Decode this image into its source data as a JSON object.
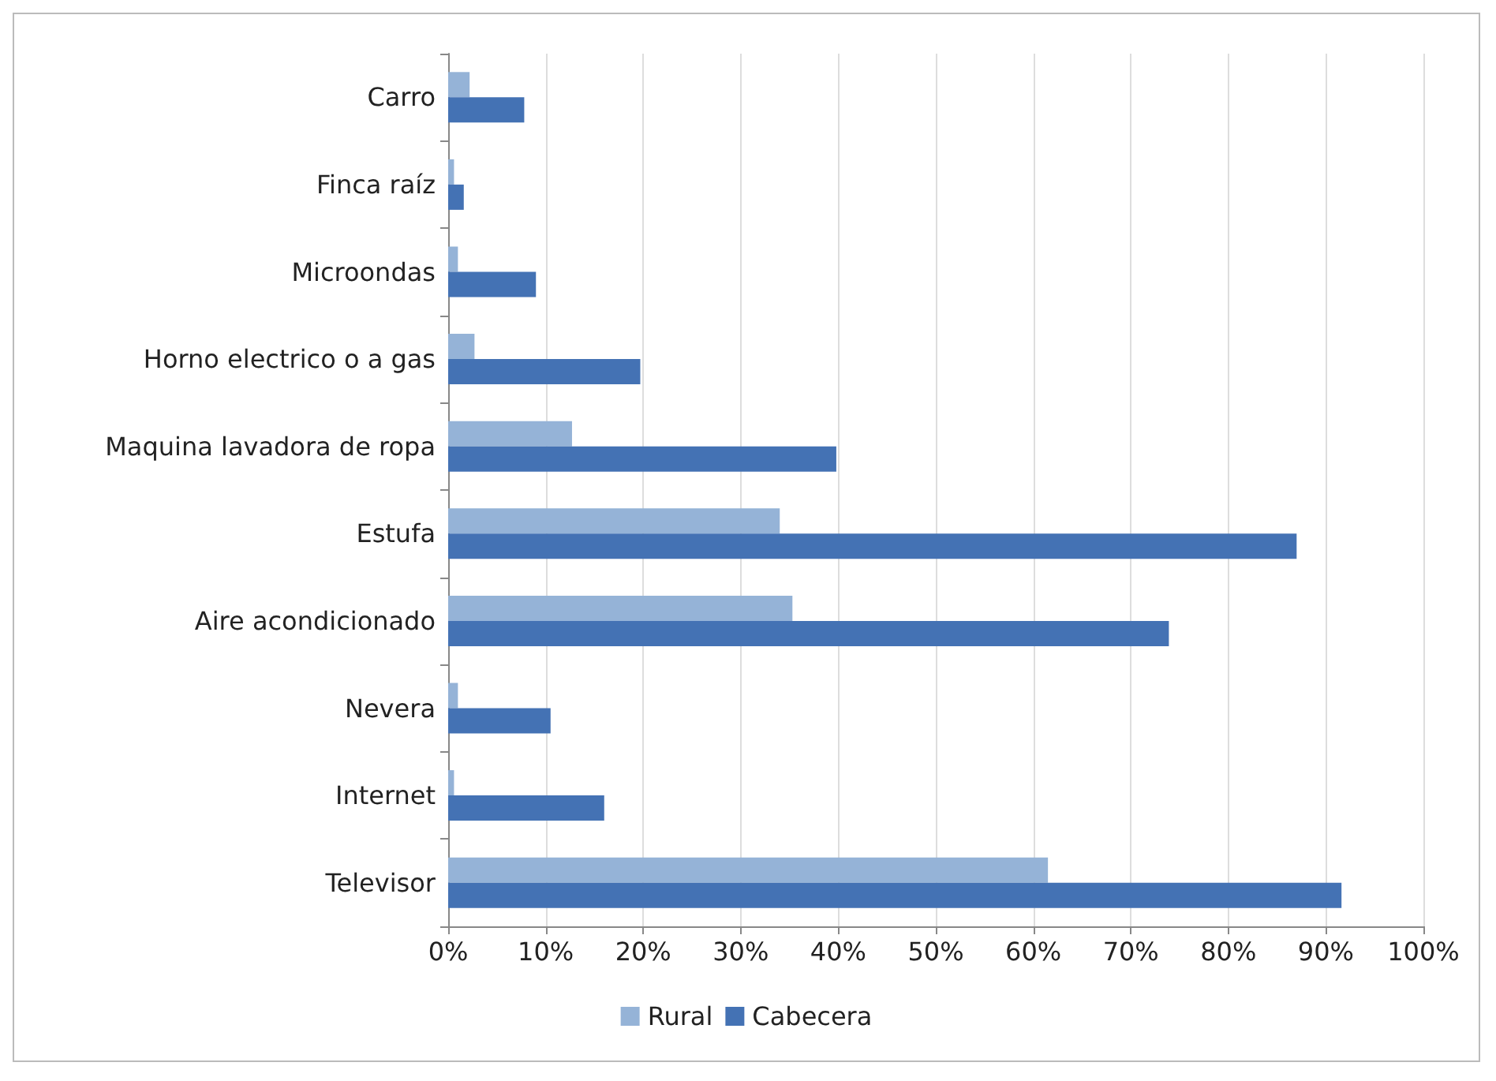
{
  "chart_data": {
    "type": "bar",
    "orientation": "horizontal",
    "categories": [
      "Carro",
      "Finca raíz",
      "Microondas",
      "Horno electrico o a gas",
      "Maquina lavadora de ropa",
      "Estufa",
      "Aire acondicionado",
      "Nevera",
      "Internet",
      "Televisor"
    ],
    "series": [
      {
        "name": "Rural",
        "color": "#95b3d7",
        "values": [
          2.2,
          0.6,
          1,
          2.7,
          12.7,
          34,
          35.3,
          1,
          0.6,
          61.5
        ]
      },
      {
        "name": "Cabecera",
        "color": "#4472b4",
        "values": [
          7.8,
          1.6,
          9,
          19.7,
          39.8,
          87,
          73.9,
          10.5,
          16,
          91.6
        ]
      }
    ],
    "xlim": [
      0,
      100
    ],
    "xticks": [
      {
        "value": 0,
        "label": "0%"
      },
      {
        "value": 10,
        "label": "10%"
      },
      {
        "value": 20,
        "label": "20%"
      },
      {
        "value": 30,
        "label": "30%"
      },
      {
        "value": 40,
        "label": "40%"
      },
      {
        "value": 50,
        "label": "50%"
      },
      {
        "value": 60,
        "label": "60%"
      },
      {
        "value": 70,
        "label": "70%"
      },
      {
        "value": 80,
        "label": "80%"
      },
      {
        "value": 90,
        "label": "90%"
      },
      {
        "value": 100,
        "label": "100%"
      }
    ],
    "grid": "x",
    "legend": "bottom"
  }
}
